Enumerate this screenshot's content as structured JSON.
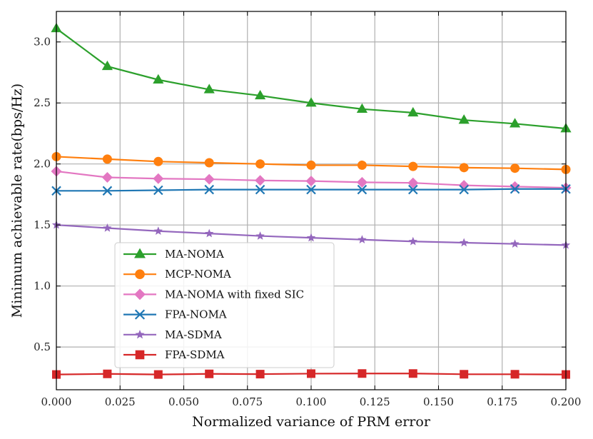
{
  "chart_data": {
    "type": "line",
    "title": "",
    "xlabel": "Normalized variance of PRM error",
    "ylabel": "Minimum achievable rate(bps/Hz)",
    "x": [
      0.0,
      0.02,
      0.04,
      0.06,
      0.08,
      0.1,
      0.12,
      0.14,
      0.16,
      0.18,
      0.2
    ],
    "xlim": [
      0.0,
      0.2
    ],
    "ylim": [
      0.15,
      3.25
    ],
    "xticks": [
      "0.000",
      "0.025",
      "0.050",
      "0.075",
      "0.100",
      "0.125",
      "0.150",
      "0.175",
      "0.200"
    ],
    "xtick_values": [
      0.0,
      0.025,
      0.05,
      0.075,
      0.1,
      0.125,
      0.15,
      0.175,
      0.2
    ],
    "yticks": [
      "0.5",
      "1.0",
      "1.5",
      "2.0",
      "2.5",
      "3.0"
    ],
    "ytick_values": [
      0.5,
      1.0,
      1.5,
      2.0,
      2.5,
      3.0
    ],
    "grid": true,
    "legend_position": "lower-left",
    "series": [
      {
        "name": "MA-NOMA",
        "color": "#2ca02c",
        "marker": "triangle",
        "values": [
          3.11,
          2.8,
          2.69,
          2.61,
          2.56,
          2.5,
          2.45,
          2.42,
          2.36,
          2.33,
          2.29
        ]
      },
      {
        "name": "MCP-NOMA",
        "color": "#ff7f0e",
        "marker": "circle",
        "values": [
          2.06,
          2.04,
          2.02,
          2.01,
          2.0,
          1.99,
          1.99,
          1.98,
          1.97,
          1.965,
          1.955
        ]
      },
      {
        "name": "MA-NOMA with fixed SIC",
        "color": "#e377c2",
        "marker": "diamond",
        "values": [
          1.94,
          1.89,
          1.88,
          1.875,
          1.865,
          1.86,
          1.85,
          1.845,
          1.825,
          1.815,
          1.805
        ]
      },
      {
        "name": "FPA-NOMA",
        "color": "#1f77b4",
        "marker": "x",
        "values": [
          1.78,
          1.78,
          1.785,
          1.79,
          1.79,
          1.79,
          1.79,
          1.79,
          1.79,
          1.795,
          1.795
        ]
      },
      {
        "name": "MA-SDMA",
        "color": "#9467bd",
        "marker": "star",
        "values": [
          1.5,
          1.475,
          1.45,
          1.43,
          1.41,
          1.395,
          1.38,
          1.365,
          1.355,
          1.345,
          1.335
        ]
      },
      {
        "name": "FPA-SDMA",
        "color": "#d62728",
        "marker": "square",
        "values": [
          0.275,
          0.28,
          0.275,
          0.28,
          0.278,
          0.282,
          0.283,
          0.283,
          0.277,
          0.277,
          0.275
        ]
      }
    ]
  }
}
